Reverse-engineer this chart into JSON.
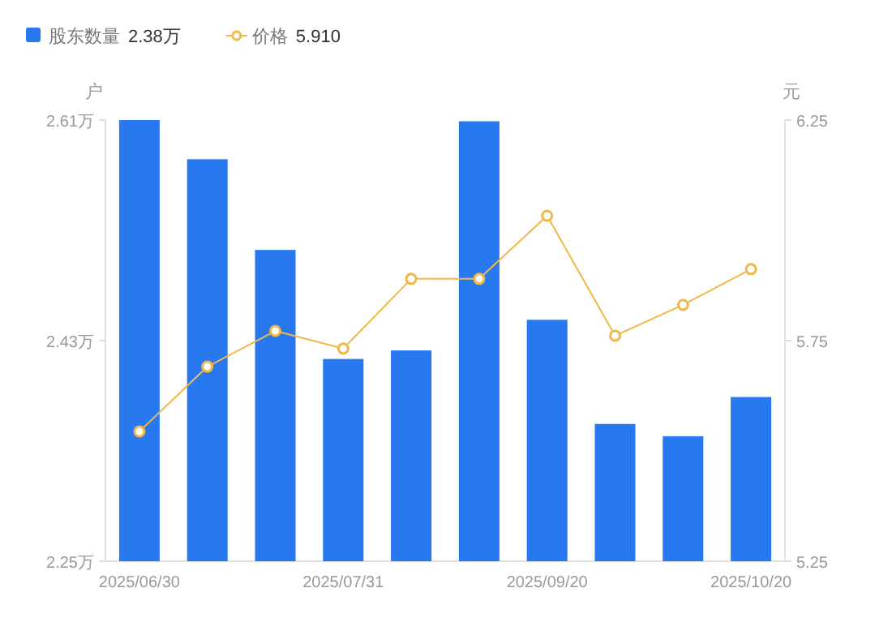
{
  "chart_data": {
    "type": "bar",
    "ylabel": "户",
    "y2label": "元",
    "categories": [
      "2025/06/30",
      null,
      null,
      "2025/07/31",
      null,
      null,
      "2025/09/20",
      null,
      null,
      "2025/10/20"
    ],
    "series": [
      {
        "name": "股东数量",
        "color": "#2878f0",
        "values": [
          2.61,
          2.578,
          2.504,
          2.415,
          2.422,
          2.609,
          2.447,
          2.362,
          2.352,
          2.384
        ]
      },
      {
        "name": "价格",
        "type": "line",
        "axis": "y2",
        "color": "#f0b848",
        "marker": "circle",
        "values": [
          5.544,
          5.691,
          5.772,
          5.732,
          5.89,
          5.89,
          6.033,
          5.761,
          5.831,
          5.912
        ]
      }
    ],
    "ylim": [
      2.25,
      2.61
    ],
    "yticks": [
      {
        "value": 2.25,
        "label": "2.25万"
      },
      {
        "value": 2.43,
        "label": "2.43万"
      },
      {
        "value": 2.61,
        "label": "2.61万"
      }
    ],
    "y2lim": [
      5.25,
      6.25
    ],
    "y2ticks": [
      5.25,
      5.75,
      6.25
    ],
    "annotations": [
      "2.38万",
      "5.910"
    ],
    "legend": "top left",
    "grid": false
  }
}
